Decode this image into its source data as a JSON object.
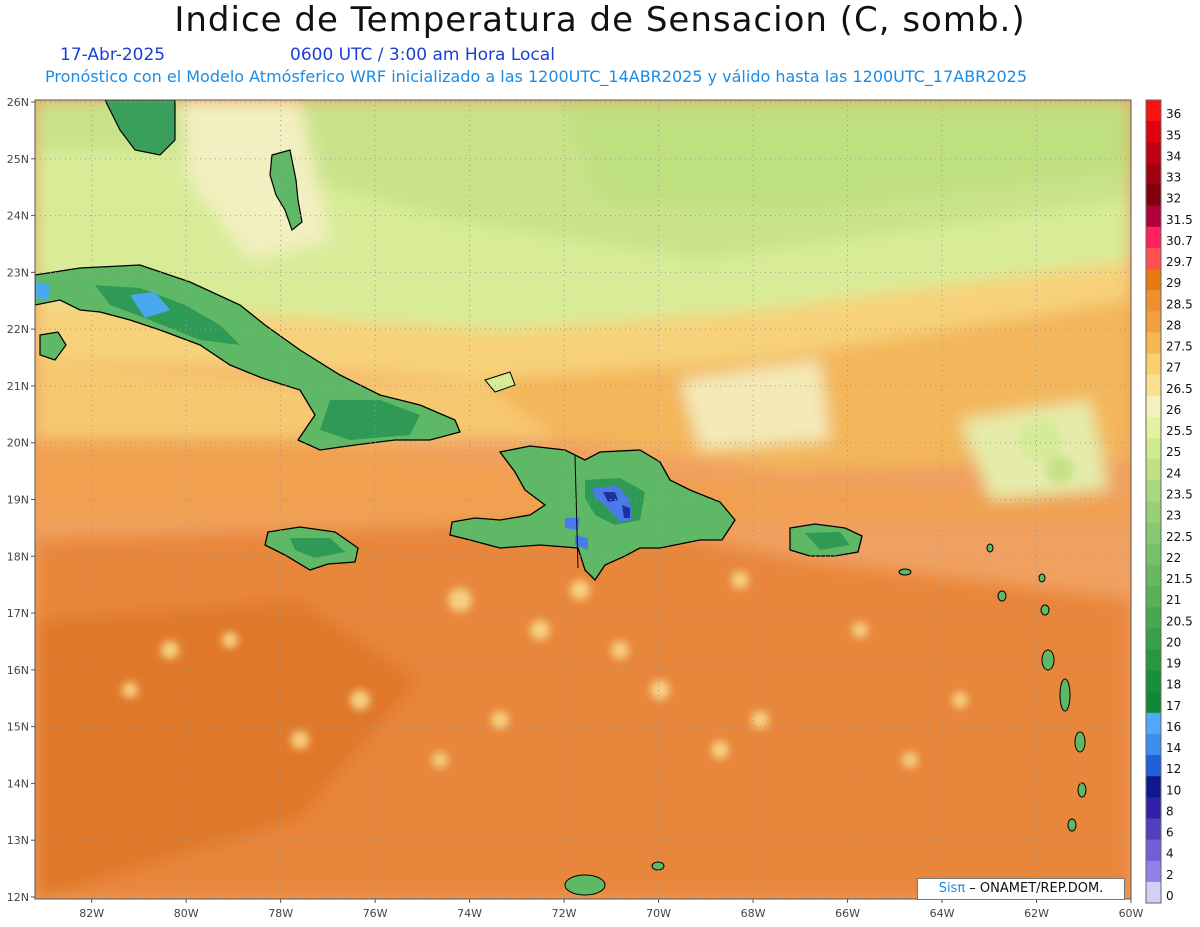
{
  "header": {
    "title": "Indice de Temperatura de Sensacion (C, somb.)",
    "date": "17-Abr-2025",
    "time": "0600 UTC / 3:00 am Hora Local",
    "model_info": "Pronóstico con el Modelo Atmósferico WRF inicializado a las 1200UTC_14ABR2025 y válido hasta las  1200UTC_17ABR2025"
  },
  "map": {
    "lat_labels": [
      "26N",
      "25N",
      "24N",
      "23N",
      "22N",
      "21N",
      "20N",
      "19N",
      "18N",
      "17N",
      "16N",
      "15N",
      "14N",
      "13N",
      "12N"
    ],
    "lon_labels": [
      "82W",
      "80W",
      "78W",
      "76W",
      "74W",
      "72W",
      "70W",
      "68W",
      "66W",
      "64W",
      "62W",
      "60W"
    ],
    "lat_range": [
      12,
      26
    ],
    "lon_range": [
      -83.2,
      -60
    ],
    "grid": "dotted",
    "ocean_color": "#f0a060"
  },
  "colorbar": {
    "levels": [
      "36",
      "35",
      "34",
      "33",
      "32",
      "31.5",
      "30.7",
      "29.7",
      "29",
      "28.5",
      "28",
      "27.5",
      "27",
      "26.5",
      "26",
      "25.5",
      "25",
      "24",
      "23.5",
      "23",
      "22.5",
      "22",
      "21.5",
      "21",
      "20.5",
      "20",
      "19",
      "18",
      "17",
      "16",
      "14",
      "12",
      "10",
      "8",
      "6",
      "4",
      "2",
      "0"
    ],
    "colors": [
      "#ff1010",
      "#e00010",
      "#c00010",
      "#a00010",
      "#800010",
      "#b00040",
      "#ff2060",
      "#ff5050",
      "#e87810",
      "#ee9030",
      "#f0a040",
      "#f5b850",
      "#f8d070",
      "#f9e090",
      "#f5f0c0",
      "#e5f0a0",
      "#d0ea90",
      "#bfe085",
      "#a8d880",
      "#98d078",
      "#88c870",
      "#78c068",
      "#68b860",
      "#58b058",
      "#48a850",
      "#38a048",
      "#289840",
      "#189038",
      "#108838",
      "#50a8f8",
      "#3a8ef0",
      "#2060d8",
      "#101890",
      "#3020a8",
      "#5040c0",
      "#7060d8",
      "#9080e8",
      "#d0d0f8"
    ]
  },
  "credit": {
    "brand": "Sisπ",
    "rest": " – ONAMET/REP.DOM."
  }
}
